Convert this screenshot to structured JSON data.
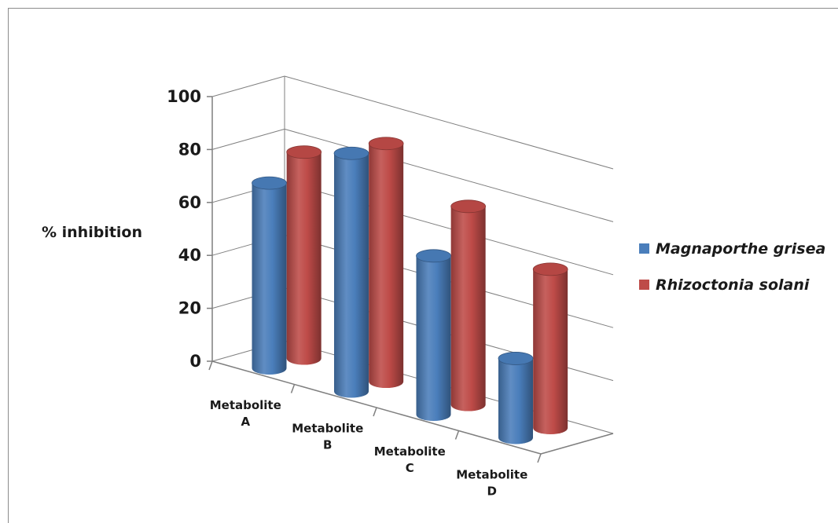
{
  "chart_data": {
    "type": "bar",
    "style": "3d-cylinder",
    "ylabel": "% inhibition",
    "xlabel": "",
    "title": "",
    "ylim": [
      0,
      100
    ],
    "yticks": [
      0,
      20,
      40,
      60,
      80,
      100
    ],
    "grid": true,
    "legend_position": "right",
    "categories": [
      [
        "Metabolite",
        "A"
      ],
      [
        "Metabolite",
        "B"
      ],
      [
        "Metabolite",
        "C"
      ],
      [
        "Metabolite",
        "D"
      ]
    ],
    "series": [
      {
        "name": "Magnaporthe grisea",
        "color": "#4a7ebb",
        "values": [
          70,
          90,
          60,
          30
        ]
      },
      {
        "name": "Rhizoctonia solani",
        "color": "#be4b48",
        "values": [
          78,
          90,
          75,
          60
        ]
      }
    ]
  }
}
